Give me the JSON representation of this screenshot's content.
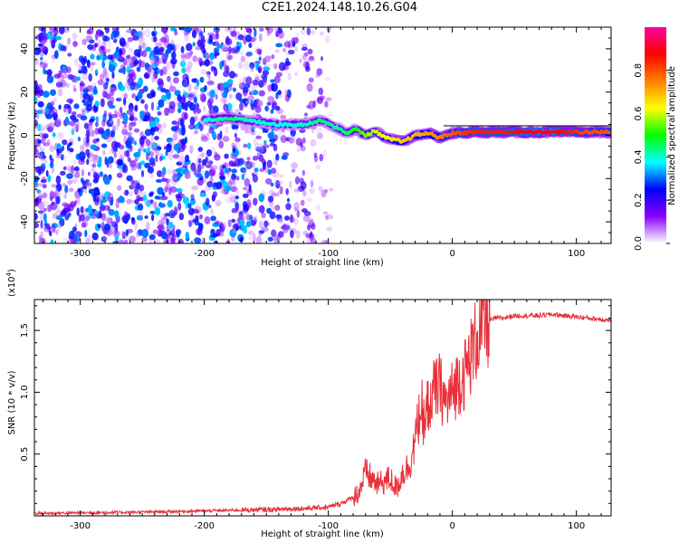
{
  "title": "C2E1.2024.148.10.26.G04",
  "chart_data": [
    {
      "type": "heatmap",
      "xlabel": "Height of straight line (km)",
      "ylabel": "Frequency (Hz)",
      "xlim": [
        -337,
        128
      ],
      "ylim": [
        -50,
        50
      ],
      "x_ticks": [
        -300,
        -200,
        -100,
        0,
        100
      ],
      "y_ticks": [
        -40,
        -20,
        0,
        20,
        40
      ],
      "colorbar": {
        "label": "Normalized spectral amplitude",
        "range": [
          0.0,
          1.0
        ],
        "ticks": [
          "0.0",
          "0.2",
          "0.4",
          "0.6",
          "0.8"
        ],
        "tick_values": [
          0.0,
          0.2,
          0.4,
          0.6,
          0.8
        ],
        "colors": [
          "#ffffff",
          "#8a00ff",
          "#0000ff",
          "#00ffff",
          "#00ff00",
          "#ffff00",
          "#ff8000",
          "#ff0000",
          "#ff00a0"
        ]
      },
      "ridge": {
        "x": [
          -200,
          -180,
          -160,
          -140,
          -120,
          -105,
          -95,
          -85,
          -78,
          -70,
          -62,
          -55,
          -48,
          -40,
          -30,
          -20,
          -10,
          0,
          20,
          40,
          60,
          80,
          95,
          110,
          128
        ],
        "y": [
          7,
          8,
          6.5,
          5,
          5,
          7,
          4,
          1,
          3,
          0,
          2,
          -1,
          -2,
          -3,
          0,
          1,
          -1,
          1,
          1.5,
          1.5,
          1.5,
          1.5,
          1.5,
          1.5,
          1.5
        ],
        "amp": [
          0.38,
          0.45,
          0.4,
          0.38,
          0.4,
          0.45,
          0.42,
          0.45,
          0.5,
          0.55,
          0.6,
          0.62,
          0.65,
          0.68,
          0.7,
          0.72,
          0.75,
          0.8,
          0.85,
          0.85,
          0.88,
          0.9,
          0.85,
          0.8,
          0.8
        ]
      }
    },
    {
      "type": "line",
      "xlabel": "Height of straight line (km)",
      "ylabel": "SNR (10 * v/v)",
      "y_multiplier": "(x10",
      "y_multiplier_exp": "4",
      "y_multiplier_close": ")",
      "xlim": [
        -337,
        128
      ],
      "ylim": [
        0,
        1.75
      ],
      "x_ticks": [
        -300,
        -200,
        -100,
        0,
        100
      ],
      "y_ticks": [
        0.5,
        1.0,
        1.5
      ],
      "y_tick_labels": [
        "0.5",
        "1.0",
        "1.5"
      ],
      "line_color": "#e8303a",
      "series": [
        {
          "x": [
            -337,
            -300,
            -250,
            -200,
            -150,
            -120,
            -100,
            -90,
            -80,
            -75,
            -70,
            -65,
            -60,
            -55,
            -50,
            -45,
            -40,
            -35,
            -30,
            -27,
            -25,
            -22,
            -20,
            -15,
            -10,
            -5,
            0,
            5,
            10,
            15,
            20,
            25,
            30,
            35,
            40,
            50,
            60,
            70,
            80,
            90,
            100,
            110,
            120,
            128
          ],
          "y": [
            0.02,
            0.025,
            0.03,
            0.04,
            0.05,
            0.06,
            0.07,
            0.1,
            0.15,
            0.2,
            0.35,
            0.3,
            0.25,
            0.28,
            0.3,
            0.22,
            0.35,
            0.4,
            0.6,
            0.8,
            0.9,
            0.7,
            0.9,
            1.0,
            1.05,
            0.9,
            1.0,
            1.1,
            1.15,
            1.3,
            1.45,
            1.55,
            1.58,
            1.6,
            1.6,
            1.62,
            1.62,
            1.62,
            1.63,
            1.62,
            1.61,
            1.6,
            1.59,
            1.58
          ]
        }
      ]
    }
  ]
}
